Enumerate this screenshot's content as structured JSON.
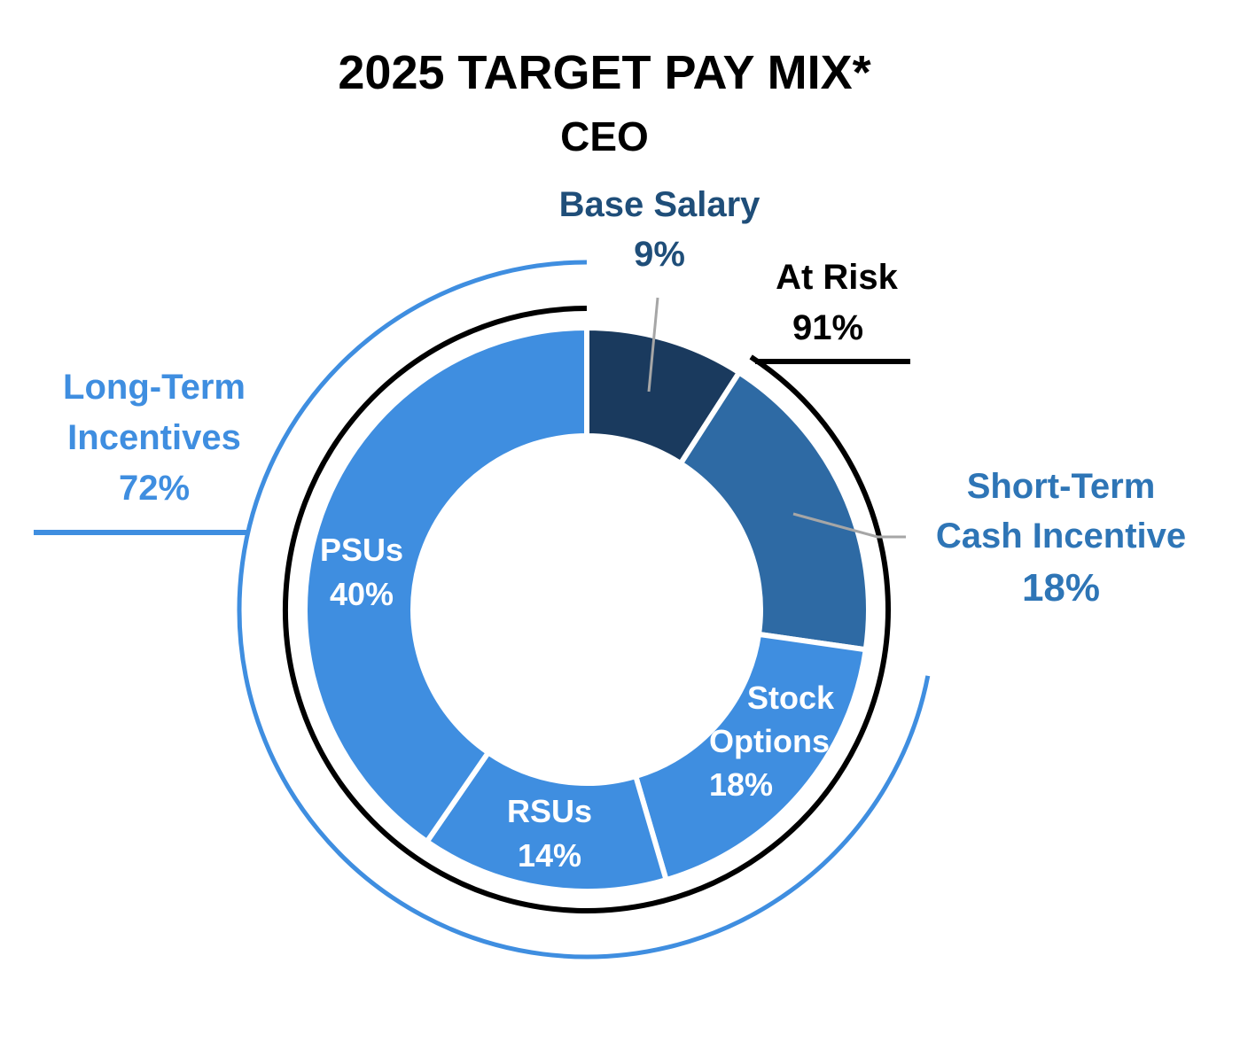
{
  "chart_data": {
    "type": "pie",
    "title": "2025 TARGET PAY MIX*",
    "subtitle": "CEO",
    "slices": [
      {
        "label": "Base Salary",
        "value": 9,
        "value_label": "9%",
        "color": "#1a3a5e"
      },
      {
        "label": "Short-Term Cash Incentive",
        "value": 18,
        "value_label": "18%",
        "color": "#2e6aa4"
      },
      {
        "label": "Stock Options",
        "value": 18,
        "value_label": "18%",
        "color": "#3f8ee0"
      },
      {
        "label": "RSUs",
        "value": 14,
        "value_label": "14%",
        "color": "#3f8ee0"
      },
      {
        "label": "PSUs",
        "value": 40,
        "value_label": "40%",
        "color": "#3f8ee0"
      }
    ],
    "groups": [
      {
        "label": "At Risk",
        "value_label": "91%",
        "color": "#000000"
      },
      {
        "label": "Long-Term Incentives",
        "value_label": "72%",
        "color": "#3f8ee0"
      }
    ],
    "colors": {
      "base_salary_label": "#1f4e79",
      "sti_label": "#2e75b6",
      "lti_label": "#3f8ee0",
      "inner_label": "#ffffff",
      "leader": "#a6a6a6"
    }
  }
}
